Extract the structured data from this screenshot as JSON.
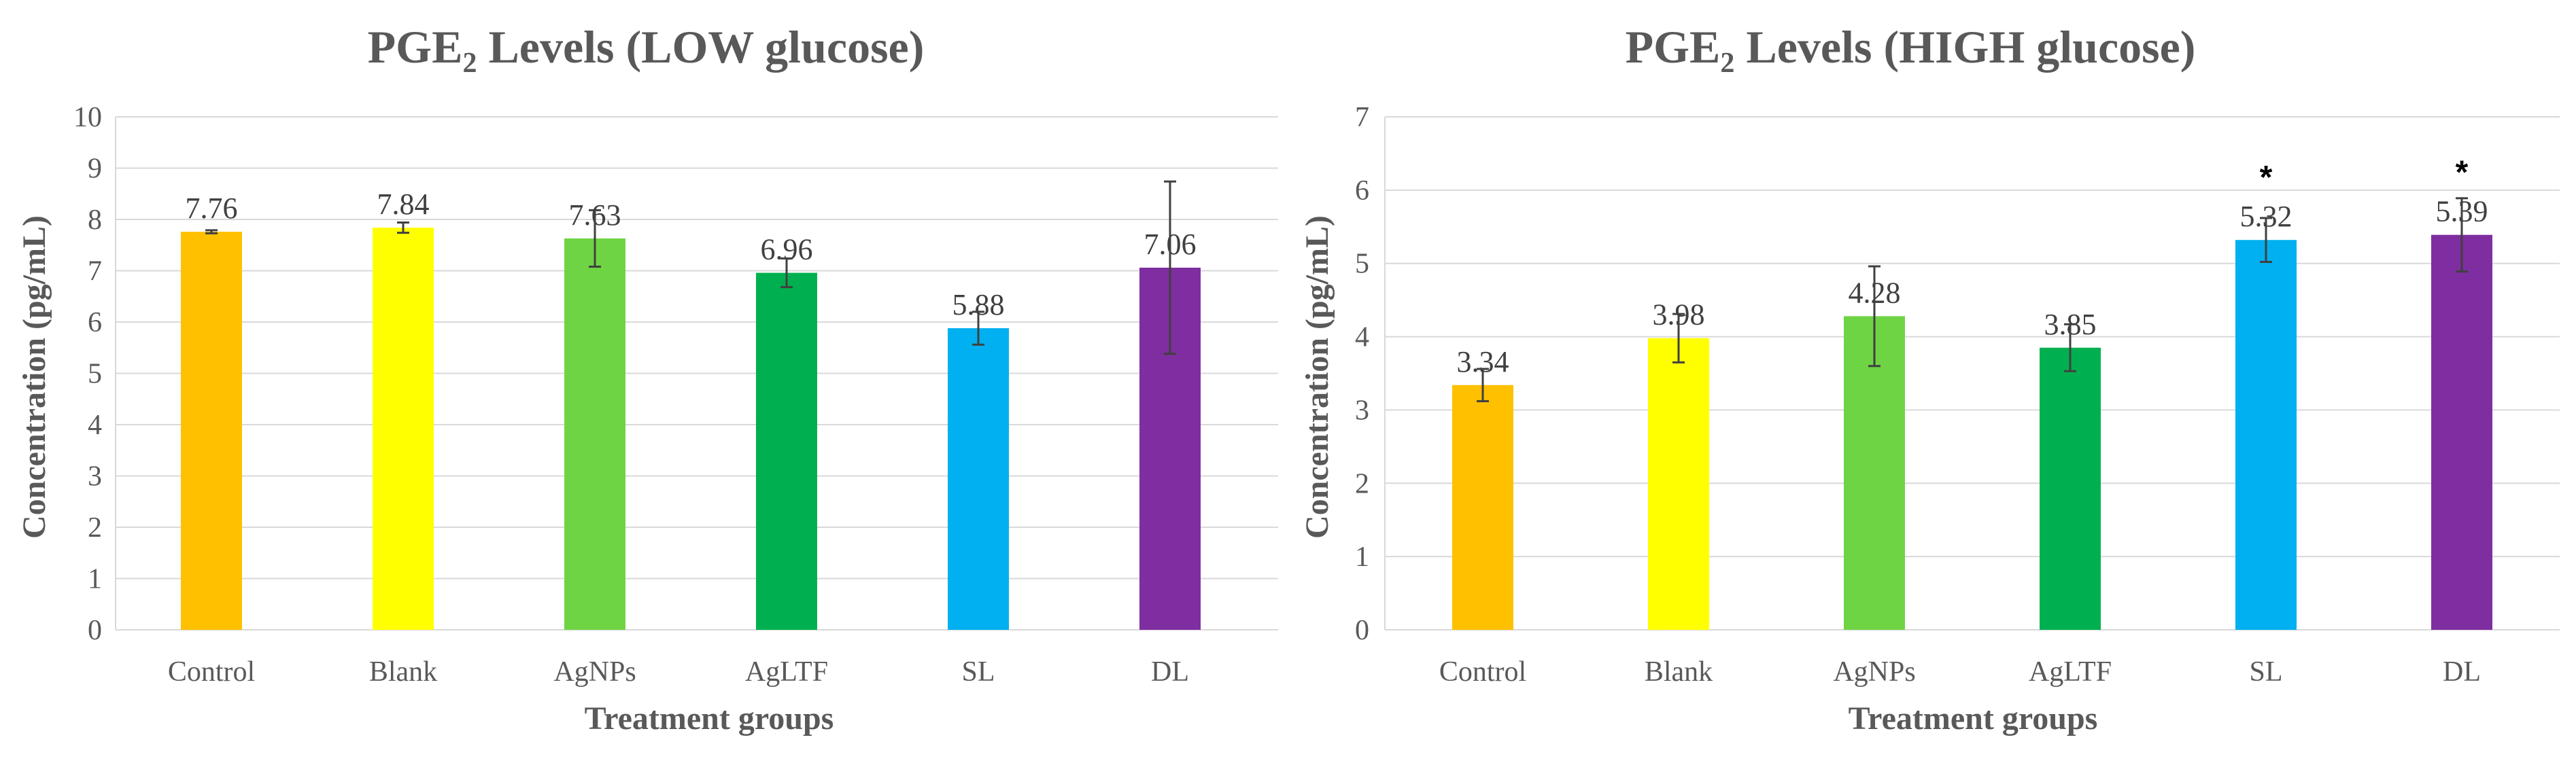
{
  "chart_data": [
    {
      "type": "bar",
      "title_main": "PGE",
      "title_sub": "2",
      "title_rest": " Levels (LOW glucose)",
      "xlabel": "Treatment groups",
      "ylabel": "Concentration (pg/mL)",
      "ylim": [
        0,
        10
      ],
      "yticks": [
        "0",
        "1",
        "2",
        "3",
        "4",
        "5",
        "6",
        "7",
        "8",
        "9",
        "10"
      ],
      "categories": [
        "Control",
        "Blank",
        "AgNPs",
        "AgLTF",
        "SL",
        "DL"
      ],
      "values": [
        7.76,
        7.84,
        7.63,
        6.96,
        5.88,
        7.06
      ],
      "labels": [
        "7.76",
        "7.84",
        "7.63",
        "6.96",
        "5.88",
        "7.06"
      ],
      "errors": [
        0.03,
        0.1,
        0.55,
        0.28,
        0.32,
        1.68
      ],
      "significance": [
        "",
        "",
        "",
        "",
        "",
        ""
      ],
      "colors": [
        "#FFC000",
        "#FFFF00",
        "#6FD444",
        "#00B050",
        "#00B0F0",
        "#7E2EA0"
      ],
      "grid": true
    },
    {
      "type": "bar",
      "title_main": "PGE",
      "title_sub": "2",
      "title_rest": " Levels (HIGH glucose)",
      "xlabel": "Treatment groups",
      "ylabel": "Concentration (pg/mL)",
      "ylim": [
        0,
        7
      ],
      "yticks": [
        "0",
        "1",
        "2",
        "3",
        "4",
        "5",
        "6",
        "7"
      ],
      "categories": [
        "Control",
        "Blank",
        "AgNPs",
        "AgLTF",
        "SL",
        "DL"
      ],
      "values": [
        3.34,
        3.98,
        4.28,
        3.85,
        5.32,
        5.39
      ],
      "labels": [
        "3.34",
        "3.98",
        "4.28",
        "3.85",
        "5.32",
        "5.39"
      ],
      "errors": [
        0.22,
        0.33,
        0.68,
        0.32,
        0.3,
        0.5
      ],
      "significance": [
        "",
        "",
        "",
        "",
        "*",
        "*"
      ],
      "colors": [
        "#FFC000",
        "#FFFF00",
        "#6FD444",
        "#00B050",
        "#00B0F0",
        "#7E2EA0"
      ],
      "grid": true
    }
  ]
}
